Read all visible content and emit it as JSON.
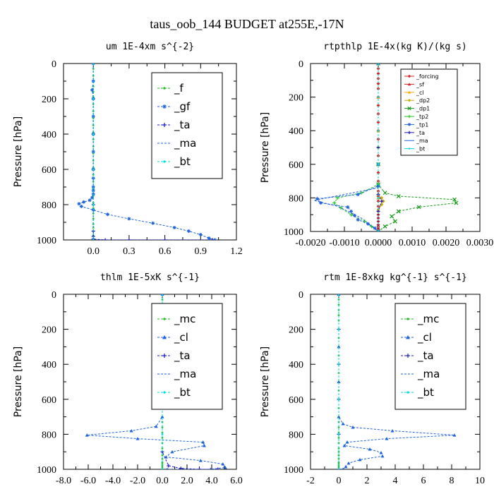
{
  "title": "taus_oob_144  BUDGET at255E,-17N",
  "chart_data": [
    {
      "type": "line",
      "title": "um  1E-4xm s^{-2}",
      "ylabel": "Pressure [hPa]",
      "xlim": [
        -0.25,
        1.2
      ],
      "ylim": [
        1000,
        0
      ],
      "xticks": [
        "0.0",
        "0.3",
        "0.6",
        "0.9",
        "1.2"
      ],
      "yticks": [
        "0",
        "200",
        "400",
        "600",
        "800",
        "1000"
      ],
      "legend_style": "large",
      "legend": [
        "_f",
        "_gf",
        "_ta",
        "_ma",
        "_bt"
      ],
      "series": [
        {
          "name": "_f",
          "color": "#22bb22",
          "x": [
            0,
            0,
            0,
            0,
            0,
            0,
            0,
            0,
            0,
            0,
            0,
            0,
            0,
            0,
            0,
            0,
            0,
            0,
            0,
            0,
            0,
            0,
            0,
            0,
            0,
            0,
            0,
            0,
            0,
            0
          ],
          "y": [
            0,
            30,
            70,
            100,
            130,
            160,
            190,
            230,
            270,
            310,
            350,
            390,
            430,
            470,
            510,
            550,
            590,
            630,
            670,
            710,
            750,
            790,
            820,
            850,
            880,
            910,
            930,
            950,
            975,
            1000
          ]
        },
        {
          "name": "_gf",
          "color": "#1e64dc",
          "x": [
            0.0,
            0.0,
            -0.01,
            0.0,
            0.0,
            0.0,
            0.0,
            0.0,
            0.0,
            0.0,
            0.0,
            0.0,
            -0.01,
            -0.03,
            -0.08,
            -0.12,
            -0.1,
            0.0,
            0.12,
            0.3,
            0.5,
            0.68,
            0.8,
            0.9,
            0.97,
            1.02
          ],
          "y": [
            0,
            100,
            150,
            200,
            300,
            400,
            500,
            600,
            650,
            700,
            720,
            740,
            760,
            775,
            785,
            795,
            810,
            830,
            855,
            880,
            905,
            930,
            950,
            970,
            990,
            1000
          ]
        },
        {
          "name": "_ta",
          "color": "#1818c8",
          "x": [
            0,
            0,
            0,
            0,
            0,
            0,
            0,
            0,
            0.1,
            0.3,
            0.6,
            1.0
          ],
          "y": [
            0,
            200,
            400,
            600,
            800,
            950,
            980,
            995,
            1000,
            1000,
            1000,
            1000
          ]
        },
        {
          "name": "_ma",
          "color": "#1e64dc",
          "x": [
            0,
            0,
            0,
            0,
            0,
            0
          ],
          "y": [
            0,
            200,
            400,
            600,
            800,
            1000
          ]
        },
        {
          "name": "_bt",
          "color": "#00dddd",
          "x": [
            0,
            0,
            0,
            0,
            0,
            0
          ],
          "y": [
            0,
            200,
            400,
            600,
            800,
            1000
          ]
        }
      ]
    },
    {
      "type": "line",
      "title": "rtpthlp  1E-4x(kg K)/(kg s)",
      "ylabel": "Pressure [hPa]",
      "xlim": [
        -0.002,
        0.003
      ],
      "ylim": [
        1000,
        0
      ],
      "xticks": [
        "-0.0020",
        "-0.0010",
        "0.0000",
        "0.0010",
        "0.0020",
        "0.0030"
      ],
      "yticks": [
        "0",
        "200",
        "400",
        "600",
        "800",
        "1000"
      ],
      "legend_style": "small",
      "legend": [
        "_forcing",
        "_sf",
        "_cl",
        "_dp2",
        "_dp1",
        "_tp2",
        "_tp1",
        "_ta",
        "_ma",
        "_bt"
      ],
      "series": [
        {
          "name": "_forcing",
          "color": "#e02020",
          "x": [
            0,
            0,
            0,
            0,
            0,
            0,
            0,
            0,
            0,
            0,
            0,
            0,
            0,
            0,
            0,
            0,
            0,
            0,
            0,
            0,
            0,
            0,
            0,
            0,
            0,
            0,
            0,
            0,
            0,
            0,
            0
          ],
          "y": [
            0,
            30,
            60,
            90,
            120,
            150,
            200,
            250,
            300,
            350,
            400,
            450,
            500,
            550,
            600,
            650,
            700,
            730,
            760,
            790,
            820,
            850,
            880,
            900,
            920,
            940,
            960,
            970,
            980,
            990,
            1000
          ]
        },
        {
          "name": "_sf",
          "color": "#e02020",
          "x": [
            0,
            0,
            0,
            0,
            0,
            0
          ],
          "y": [
            0,
            200,
            400,
            600,
            800,
            1000
          ]
        },
        {
          "name": "_cl",
          "color": "#ffaa00",
          "x": [
            0,
            0,
            0,
            0,
            0,
            0
          ],
          "y": [
            0,
            200,
            400,
            600,
            800,
            1000
          ]
        },
        {
          "name": "_dp2",
          "color": "#ccaa00",
          "x": [
            0,
            0,
            0,
            0.0001,
            0.00015,
            0.0001,
            0,
            0
          ],
          "y": [
            0,
            500,
            780,
            800,
            820,
            840,
            870,
            1000
          ]
        },
        {
          "name": "_dp1",
          "color": "#119911",
          "x": [
            0,
            0,
            0,
            0.0002,
            0.0006,
            0.00225,
            0.0023,
            0.0012,
            0.0006,
            0.0004,
            0.0005,
            0.0002,
            0
          ],
          "y": [
            0,
            600,
            720,
            770,
            790,
            810,
            830,
            855,
            880,
            910,
            940,
            970,
            1000
          ]
        },
        {
          "name": "_tp2",
          "color": "#22cc22",
          "x": [
            0,
            0,
            0,
            -0.0005,
            -0.0012,
            -0.0013,
            -0.0011,
            -0.0008,
            -0.0004,
            -0.0002,
            0
          ],
          "y": [
            0,
            600,
            720,
            770,
            800,
            830,
            860,
            900,
            940,
            970,
            1000
          ]
        },
        {
          "name": "_tp1",
          "color": "#2266dd",
          "x": [
            0,
            0,
            0,
            -0.0006,
            -0.0018,
            -0.0017,
            -0.0009,
            -0.0008,
            -0.0007,
            -0.0006,
            -0.0003,
            -0.0001,
            0
          ],
          "y": [
            0,
            600,
            730,
            780,
            805,
            830,
            855,
            880,
            905,
            930,
            955,
            980,
            1000
          ]
        },
        {
          "name": "_ta",
          "color": "#1818c8",
          "x": [
            0,
            0,
            0,
            0.0001,
            0,
            0
          ],
          "y": [
            0,
            500,
            780,
            820,
            880,
            1000
          ]
        },
        {
          "name": "_ma",
          "color": "#1e64dc",
          "x": [
            0,
            0,
            0,
            -0.0019,
            -0.0012,
            -0.0005,
            0
          ],
          "y": [
            0,
            600,
            740,
            815,
            850,
            920,
            1000
          ]
        },
        {
          "name": "_bt",
          "color": "#00dddd",
          "x": [
            0,
            0,
            0,
            0,
            0,
            0
          ],
          "y": [
            0,
            200,
            400,
            600,
            800,
            1000
          ]
        }
      ]
    },
    {
      "type": "line",
      "title": "thlm  1E-5xK s^{-1}",
      "ylabel": "Pressure [hPa]",
      "xlim": [
        -8,
        6
      ],
      "ylim": [
        1000,
        0
      ],
      "xticks": [
        "-8.0",
        "-6.0",
        "-4.0",
        "-2.0",
        "0.0",
        "2.0",
        "4.0",
        "6.0"
      ],
      "yticks": [
        "0",
        "200",
        "400",
        "600",
        "800",
        "1000"
      ],
      "legend_style": "large",
      "legend": [
        "_mc",
        "_cl",
        "_ta",
        "_ma",
        "_bt"
      ],
      "series": [
        {
          "name": "_mc",
          "color": "#22bb22",
          "x": [
            0,
            0,
            0,
            0,
            0,
            0,
            0,
            0,
            0,
            0,
            0,
            0,
            0,
            0,
            0,
            0,
            0,
            0,
            0,
            0,
            0,
            0,
            0,
            0,
            0,
            0,
            0,
            0,
            0,
            0,
            0
          ],
          "y": [
            0,
            30,
            60,
            90,
            120,
            150,
            200,
            250,
            300,
            350,
            400,
            450,
            500,
            550,
            600,
            650,
            700,
            730,
            760,
            790,
            820,
            850,
            880,
            900,
            920,
            940,
            960,
            970,
            980,
            990,
            1000
          ]
        },
        {
          "name": "_cl",
          "color": "#1e64dc",
          "x": [
            0,
            0,
            0,
            0,
            -0.5,
            -2.5,
            -6.1,
            -2.0,
            3.3,
            3.4,
            0.8,
            0.3,
            3.1,
            4.9,
            5.1,
            3.9,
            0.4
          ],
          "y": [
            0,
            300,
            500,
            700,
            755,
            780,
            805,
            825,
            845,
            865,
            900,
            930,
            950,
            970,
            990,
            1000,
            1000
          ]
        },
        {
          "name": "_ta",
          "color": "#1818c8",
          "x": [
            0,
            0,
            0,
            0,
            0.5,
            1.5,
            3.0,
            4.5
          ],
          "y": [
            0,
            300,
            600,
            900,
            980,
            995,
            1000,
            1000
          ]
        },
        {
          "name": "_ma",
          "color": "#1e64dc",
          "x": [
            0,
            0,
            0,
            0,
            0,
            0
          ],
          "y": [
            0,
            200,
            400,
            600,
            800,
            1000
          ]
        },
        {
          "name": "_bt",
          "color": "#00dddd",
          "x": [
            0,
            0,
            0,
            0,
            0,
            0
          ],
          "y": [
            0,
            200,
            400,
            600,
            800,
            1000
          ]
        }
      ]
    },
    {
      "type": "line",
      "title": "rtm  1E-8xkg kg^{-1} s^{-1}",
      "ylabel": "Pressure [hPa]",
      "xlim": [
        -2,
        10
      ],
      "ylim": [
        1000,
        0
      ],
      "xticks": [
        "-2",
        "0",
        "2",
        "4",
        "6",
        "8",
        "10"
      ],
      "yticks": [
        "0",
        "200",
        "400",
        "600",
        "800",
        "1000"
      ],
      "legend_style": "large",
      "legend": [
        "_mc",
        "_cl",
        "_ta",
        "_ma",
        "_bt"
      ],
      "series": [
        {
          "name": "_mc",
          "color": "#22bb22",
          "x": [
            0,
            0,
            0,
            0,
            0,
            0,
            0,
            0,
            0,
            0,
            0,
            0,
            0,
            0,
            0,
            0,
            0,
            0,
            0,
            0,
            0,
            0,
            0,
            0,
            0,
            0,
            0,
            0,
            0,
            0,
            0
          ],
          "y": [
            0,
            30,
            60,
            90,
            120,
            150,
            200,
            250,
            300,
            350,
            400,
            450,
            500,
            550,
            600,
            650,
            700,
            730,
            760,
            790,
            820,
            850,
            880,
            900,
            920,
            940,
            960,
            970,
            980,
            990,
            1000
          ]
        },
        {
          "name": "_cl",
          "color": "#1e64dc",
          "x": [
            0,
            0,
            0,
            0,
            0.3,
            1.0,
            3.8,
            8.2,
            3.4,
            0.6,
            0.4,
            2.2,
            3.0,
            3.1,
            1.5,
            0.7,
            0.5,
            0.3
          ],
          "y": [
            0,
            300,
            500,
            700,
            740,
            760,
            780,
            805,
            825,
            845,
            865,
            885,
            905,
            925,
            945,
            965,
            985,
            1000
          ]
        },
        {
          "name": "_ta",
          "color": "#1818c8",
          "x": [
            0,
            0,
            0,
            0,
            0,
            0
          ],
          "y": [
            0,
            200,
            400,
            600,
            800,
            1000
          ]
        },
        {
          "name": "_ma",
          "color": "#1e64dc",
          "x": [
            0,
            0,
            0,
            0,
            0,
            0
          ],
          "y": [
            0,
            200,
            400,
            600,
            800,
            1000
          ]
        },
        {
          "name": "_bt",
          "color": "#00dddd",
          "x": [
            0,
            0,
            0,
            0,
            0,
            0
          ],
          "y": [
            0,
            200,
            400,
            600,
            800,
            1000
          ]
        }
      ]
    }
  ]
}
